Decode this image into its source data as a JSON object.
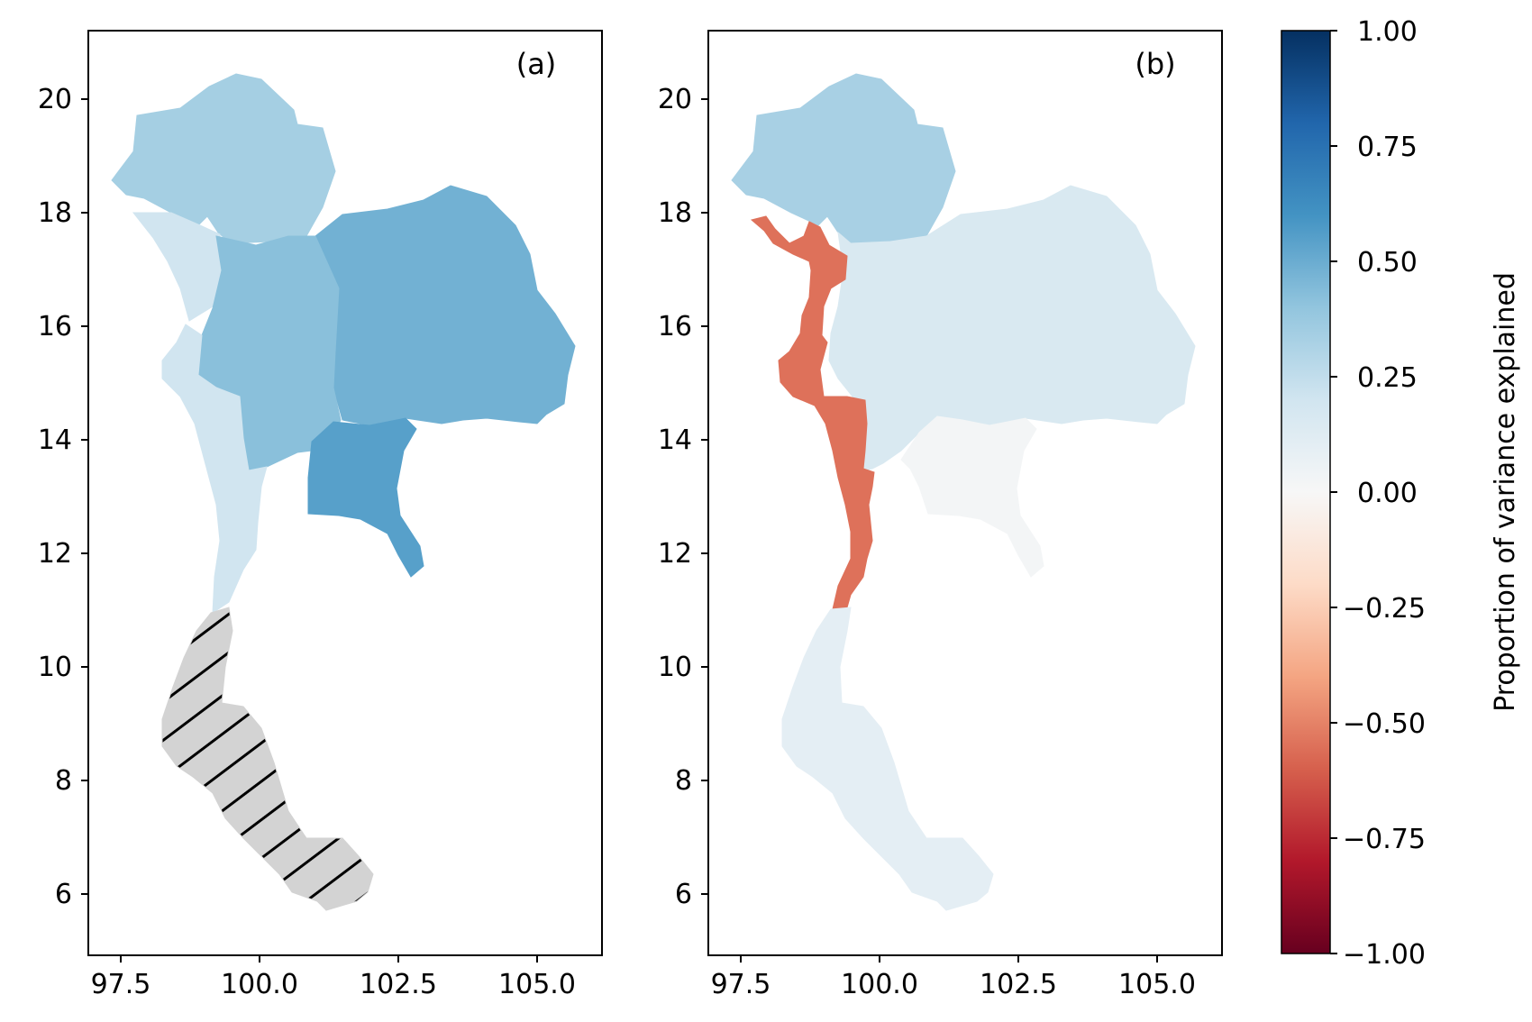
{
  "panels": [
    {
      "label": "(a)",
      "x_ticks": [
        "97.5",
        "100.0",
        "102.5",
        "105.0"
      ],
      "y_ticks": [
        "6",
        "8",
        "10",
        "12",
        "14",
        "16",
        "18",
        "20"
      ],
      "regions": [
        {
          "name": "north",
          "value": 0.34
        },
        {
          "name": "northeast",
          "value": 0.48
        },
        {
          "name": "central",
          "value": 0.42
        },
        {
          "name": "east",
          "value": 0.55
        },
        {
          "name": "west",
          "value": 0.2
        },
        {
          "name": "northwest-strip",
          "value": 0.2
        },
        {
          "name": "south",
          "value": null,
          "fill": "no data (hatched)"
        }
      ]
    },
    {
      "label": "(b)",
      "x_ticks": [
        "97.5",
        "100.0",
        "102.5",
        "105.0"
      ],
      "y_ticks": [
        "6",
        "8",
        "10",
        "12",
        "14",
        "16",
        "18",
        "20"
      ],
      "regions": [
        {
          "name": "north",
          "value": 0.33
        },
        {
          "name": "northeast",
          "value": 0.16
        },
        {
          "name": "central",
          "value": 0.16
        },
        {
          "name": "east",
          "value": 0.02
        },
        {
          "name": "west",
          "value": -0.55
        },
        {
          "name": "south",
          "value": 0.1
        }
      ]
    }
  ],
  "colorbar": {
    "label": "Proportion of variance explained",
    "ticks": [
      "1.00",
      "0.75",
      "0.50",
      "0.25",
      "0.00",
      "−0.25",
      "−0.50",
      "−0.75",
      "−1.00"
    ],
    "range": [
      -1,
      1
    ],
    "colormap": "RdBu",
    "stops": [
      "#67001f",
      "#b2182b",
      "#d6604d",
      "#f4a582",
      "#fddbc7",
      "#f7f7f7",
      "#d1e5f0",
      "#92c5de",
      "#4393c3",
      "#2166ac",
      "#053061"
    ]
  },
  "colors": {
    "no_data": "#d3d3d3",
    "hatch": "#000000"
  }
}
